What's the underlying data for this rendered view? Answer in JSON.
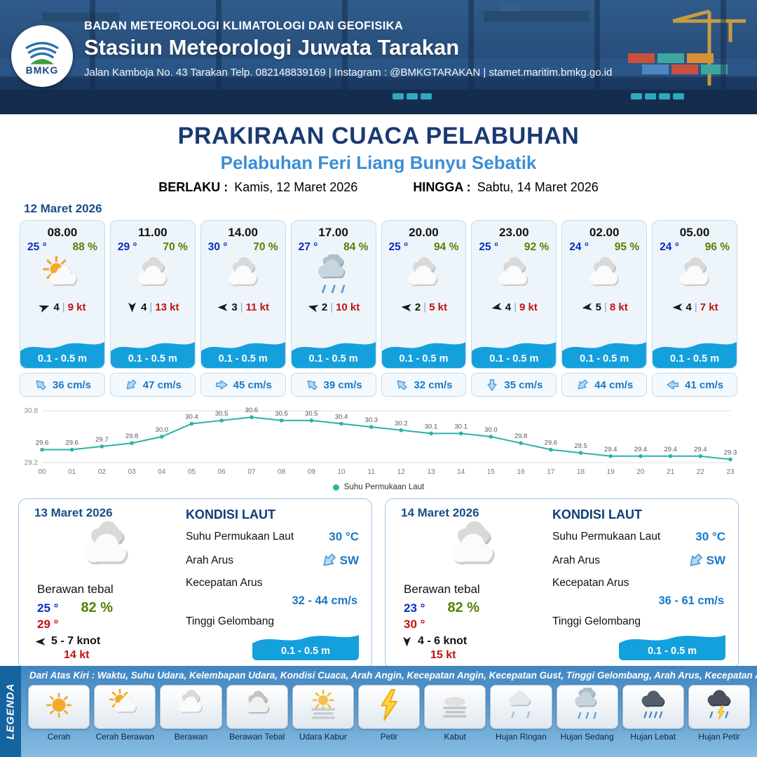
{
  "header": {
    "logo_label": "BMKG",
    "org": "BADAN METEOROLOGI KLIMATOLOGI DAN GEOFISIKA",
    "station": "Stasiun Meteorologi Juwata Tarakan",
    "contact": "Jalan Kamboja No. 43 Tarakan  Telp. 082148839169 | Instagram : @BMKGTARAKAN | stamet.maritim.bmkg.go.id"
  },
  "title": {
    "main": "PRAKIRAAN CUACA PELABUHAN",
    "sub": "Pelabuhan Feri Liang Bunyu Sebatik",
    "berlaku_label": "BERLAKU :",
    "berlaku_value": "Kamis, 12 Maret 2026",
    "hingga_label": "HINGGA :",
    "hingga_value": "Sabtu, 14 Maret 2026"
  },
  "forecast_date": "12 Maret 2026",
  "cards": [
    {
      "time": "08.00",
      "temp": "25 °",
      "rh": "88 %",
      "icon": "cerah-berawan",
      "wind_deg": -20,
      "wind_bft": "4",
      "wind_kt": "9 kt",
      "wave": "0.1 - 0.5 m",
      "cur_deg": -135,
      "cur": "36 cm/s"
    },
    {
      "time": "11.00",
      "temp": "29 °",
      "rh": "70 %",
      "icon": "berawan",
      "wind_deg": 90,
      "wind_bft": "4",
      "wind_kt": "13 kt",
      "wave": "0.1 - 0.5 m",
      "cur_deg": 135,
      "cur": "47 cm/s"
    },
    {
      "time": "14.00",
      "temp": "30 °",
      "rh": "70 %",
      "icon": "berawan",
      "wind_deg": 180,
      "wind_bft": "3",
      "wind_kt": "11 kt",
      "wave": "0.1 - 0.5 m",
      "cur_deg": 0,
      "cur": "45 cm/s"
    },
    {
      "time": "17.00",
      "temp": "27 °",
      "rh": "84 %",
      "icon": "hujan-sedang",
      "wind_deg": 195,
      "wind_bft": "2",
      "wind_kt": "10 kt",
      "wave": "0.1 - 0.5 m",
      "cur_deg": -135,
      "cur": "39 cm/s"
    },
    {
      "time": "20.00",
      "temp": "25 °",
      "rh": "94 %",
      "icon": "berawan",
      "wind_deg": 185,
      "wind_bft": "2",
      "wind_kt": "5 kt",
      "wave": "0.1 - 0.5 m",
      "cur_deg": -135,
      "cur": "32 cm/s"
    },
    {
      "time": "23.00",
      "temp": "25 °",
      "rh": "92 %",
      "icon": "berawan",
      "wind_deg": 168,
      "wind_bft": "4",
      "wind_kt": "9 kt",
      "wave": "0.1 - 0.5 m",
      "cur_deg": 90,
      "cur": "35 cm/s"
    },
    {
      "time": "02.00",
      "temp": "24 °",
      "rh": "95 %",
      "icon": "berawan",
      "wind_deg": 172,
      "wind_bft": "5",
      "wind_kt": "8 kt",
      "wave": "0.1 - 0.5 m",
      "cur_deg": 135,
      "cur": "44 cm/s"
    },
    {
      "time": "05.00",
      "temp": "24 °",
      "rh": "96 %",
      "icon": "berawan",
      "wind_deg": 178,
      "wind_bft": "4",
      "wind_kt": "7 kt",
      "wave": "0.1 - 0.5 m",
      "cur_deg": 180,
      "cur": "41 cm/s"
    }
  ],
  "chart_data": {
    "type": "line",
    "title": "Suhu Permukaan Laut",
    "series_label": "Suhu Permukaan Laut",
    "x": [
      "00",
      "01",
      "02",
      "03",
      "04",
      "05",
      "06",
      "07",
      "08",
      "09",
      "10",
      "11",
      "12",
      "13",
      "14",
      "15",
      "16",
      "17",
      "18",
      "19",
      "20",
      "21",
      "22",
      "23"
    ],
    "values": [
      29.6,
      29.6,
      29.7,
      29.8,
      30.0,
      30.4,
      30.5,
      30.6,
      30.5,
      30.5,
      30.4,
      30.3,
      30.2,
      30.1,
      30.1,
      30.0,
      29.8,
      29.6,
      29.5,
      29.4,
      29.4,
      29.4,
      29.4,
      29.3
    ],
    "ylim": [
      29.2,
      30.8
    ],
    "grid": [
      30.8,
      29.2
    ],
    "color": "#2bb3a3",
    "legend_position": "bottom"
  },
  "sea_labels": {
    "title": "KONDISI LAUT",
    "sst": "Suhu Permukaan Laut",
    "arus": "Arah Arus",
    "kec": "Kecepatan Arus",
    "gel": "Tinggi Gelombang"
  },
  "day_cards": [
    {
      "date": "13 Maret 2026",
      "icon": "berawan",
      "condition": "Berawan tebal",
      "temp_min": "25 °",
      "rh": "82 %",
      "temp_max": "29 °",
      "wind_deg": 180,
      "wind_range": "5 - 7 knot",
      "gust": "14 kt",
      "sst": "30 °C",
      "cur_dir": "SW",
      "cur_dir_deg": 135,
      "cur_speed": "32 - 44 cm/s",
      "wave": "0.1 - 0.5 m"
    },
    {
      "date": "14 Maret 2026",
      "icon": "berawan",
      "condition": "Berawan tebal",
      "temp_min": "23 °",
      "rh": "82 %",
      "temp_max": "30 °",
      "wind_deg": 90,
      "wind_range": "4 - 6 knot",
      "gust": "15 kt",
      "sst": "30 °C",
      "cur_dir": "SW",
      "cur_dir_deg": 135,
      "cur_speed": "36 - 61 cm/s",
      "wave": "0.1 - 0.5 m"
    }
  ],
  "legend": {
    "title": "LEGENDA",
    "description": "Dari Atas Kiri : Waktu, Suhu Udara, Kelembapan Udara, Kondisi Cuaca, Arah Angin, Kecepatan Angin, Kecepatan Gust, Tinggi Gelombang, Arah Arus, Kecepatan Arus",
    "items": [
      {
        "label": "Cerah",
        "icon": "cerah"
      },
      {
        "label": "Cerah Berawan",
        "icon": "cerah-berawan"
      },
      {
        "label": "Berawan",
        "icon": "berawan"
      },
      {
        "label": "Berawan Tebal",
        "icon": "berawan-tebal"
      },
      {
        "label": "Udara Kabur",
        "icon": "udara-kabur"
      },
      {
        "label": "Petir",
        "icon": "petir"
      },
      {
        "label": "Kabut",
        "icon": "kabut"
      },
      {
        "label": "Hujan Ringan",
        "icon": "hujan-ringan"
      },
      {
        "label": "Hujan Sedang",
        "icon": "hujan-sedang"
      },
      {
        "label": "Hujan Lebat",
        "icon": "hujan-lebat"
      },
      {
        "label": "Hujan Petir",
        "icon": "hujan-petir"
      }
    ]
  },
  "colors": {
    "header_blue": "#1d3c66",
    "title_blue": "#1b3a73",
    "subtitle_blue": "#3c8ed6",
    "temp_blue": "#0b2bc0",
    "humidity_green": "#567f00",
    "wind_red": "#c11212",
    "wave_blue": "#14a0dd",
    "current_blue": "#1778c8",
    "sst_line": "#2bb3a3"
  }
}
